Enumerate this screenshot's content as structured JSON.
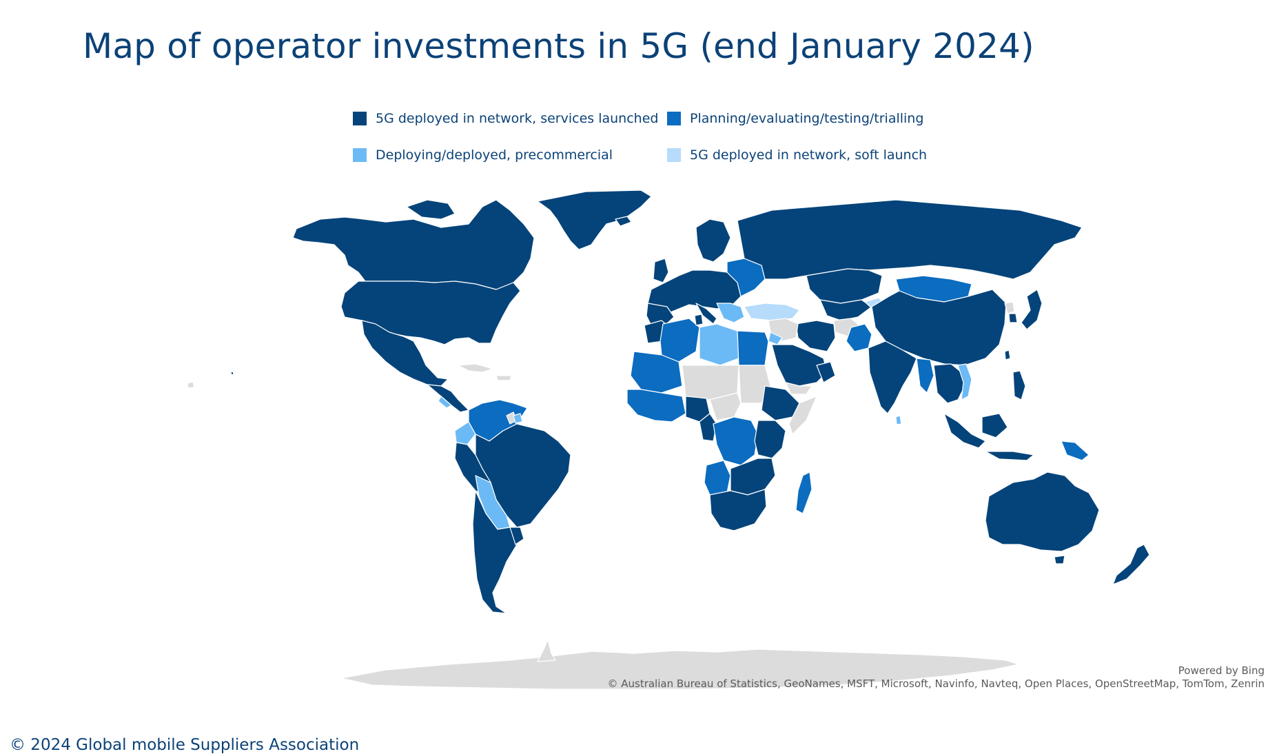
{
  "title": "Map of operator investments in 5G (end January 2024)",
  "legend": [
    {
      "label": "5G deployed in network, services launched",
      "color": "#05447a"
    },
    {
      "label": "Planning/evaluating/testing/trialling",
      "color": "#0b6cc0"
    },
    {
      "label": "Deploying/deployed, precommercial",
      "color": "#6cbaf5"
    },
    {
      "label": "5G deployed in network, soft launch",
      "color": "#b6dbfb"
    }
  ],
  "no_data_color": "#dcdcdc",
  "attribution": {
    "powered_by": "Powered by Bing",
    "sources": "© Australian Bureau of Statistics, GeoNames, MSFT, Microsoft, Navinfo, Navteq, Open Places, OpenStreetMap, TomTom, Zenrin"
  },
  "footer": "© 2024 Global mobile Suppliers Association"
}
